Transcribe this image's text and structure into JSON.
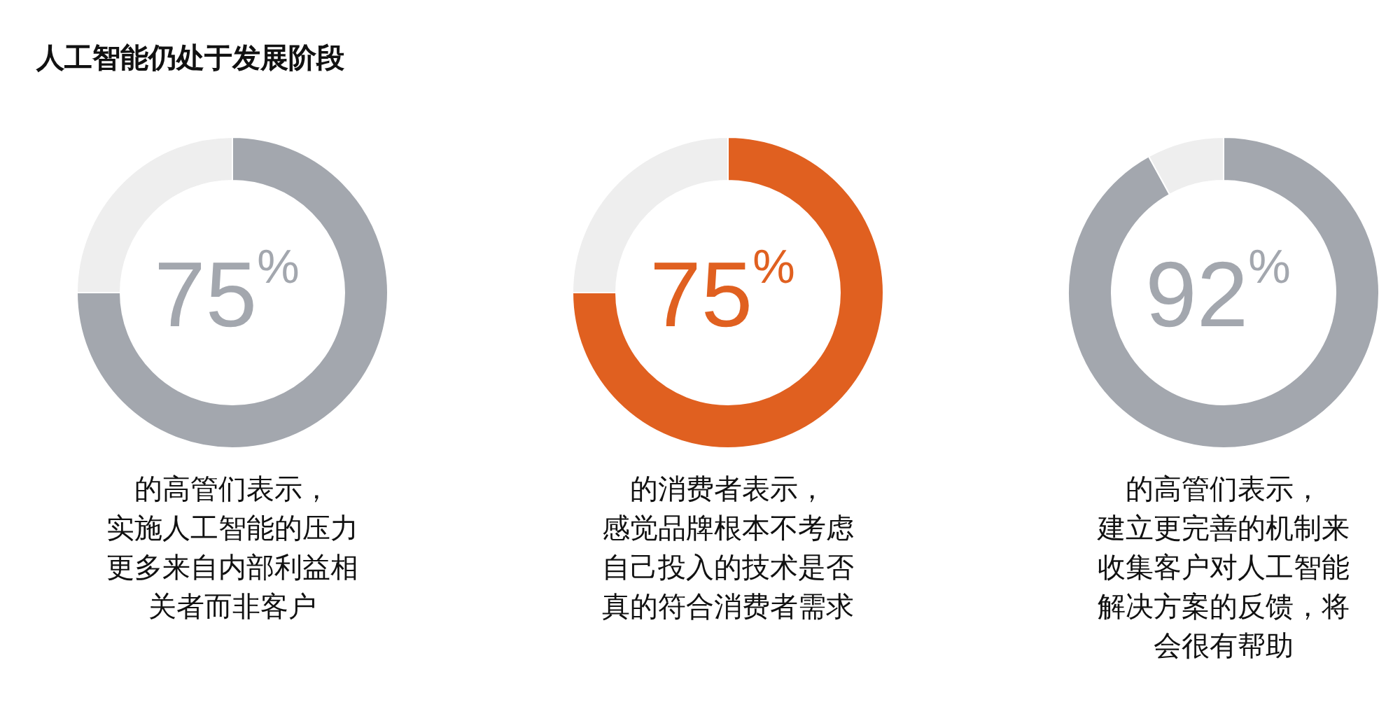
{
  "chart_data": [
    {
      "type": "donut",
      "title": "人工智能仍处于发展阶段",
      "categories": [
        null,
        null
      ],
      "values": [
        75,
        25
      ],
      "colors": [
        "#a3a7ae",
        "#eeeeee"
      ],
      "value_labels": [
        "75$^{%}$",
        null
      ],
      "annotations": [
        "的高管们表示，实施人工智能的压力更多来自内部利益相关者而非客户"
      ]
    },
    {
      "type": "donut",
      "categories": [
        null,
        null
      ],
      "values": [
        75,
        25
      ],
      "colors": [
        "#e06020",
        "#eeeeee"
      ],
      "value_labels": [
        "75$^{%}$",
        null
      ],
      "annotations": [
        "的消费者表示，感觉品牌根本不考虑自己投入的技术是否真的符合消费者需求"
      ]
    },
    {
      "type": "donut",
      "categories": [
        null,
        null
      ],
      "values": [
        92,
        8
      ],
      "colors": [
        "#a3a7ae",
        "#eeeeee"
      ],
      "value_labels": [
        "92$^{%}$",
        null
      ],
      "annotations": [
        "的高管们表示，建立更完善的机制来收集客户对人工智能解决方案的反馈，将会很有帮助"
      ]
    }
  ]
}
